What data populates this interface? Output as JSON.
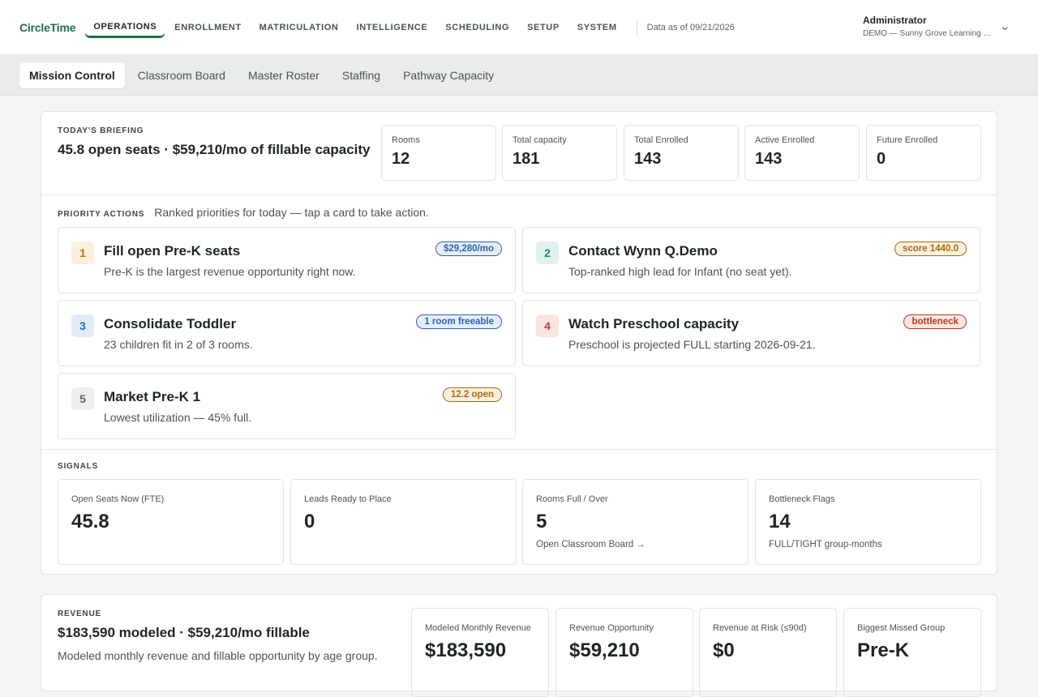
{
  "app": {
    "brand": "CircleTime"
  },
  "nav": {
    "items": [
      "OPERATIONS",
      "ENROLLMENT",
      "MATRICULATION",
      "INTELLIGENCE",
      "SCHEDULING",
      "SETUP",
      "SYSTEM"
    ],
    "active": "OPERATIONS",
    "as_of": "Data as of 09/21/2026"
  },
  "user": {
    "name": "Administrator",
    "org": "DEMO — Sunny Grove Learning Ce...",
    "chevron_icon": "chevron-down-icon"
  },
  "subtabs": [
    "Mission Control",
    "Classroom Board",
    "Master Roster",
    "Staffing",
    "Pathway Capacity"
  ],
  "briefing": {
    "eyebrow": "TODAY'S BRIEFING",
    "headline": "45.8 open seats · $59,210/mo of fillable capacity",
    "stats": [
      {
        "label": "Rooms",
        "value": "12"
      },
      {
        "label": "Total capacity",
        "value": "181"
      },
      {
        "label": "Total Enrolled",
        "value": "143"
      },
      {
        "label": "Active Enrolled",
        "value": "143"
      },
      {
        "label": "Future Enrolled",
        "value": "0"
      }
    ]
  },
  "priority": {
    "eyebrow": "PRIORITY ACTIONS",
    "desc": "Ranked priorities for today — tap a card to take action.",
    "cards": [
      {
        "num": "1",
        "title": "Fill open Pre-K seats",
        "sub": "Pre-K is the largest revenue opportunity right now.",
        "pill": "$29,280/mo"
      },
      {
        "num": "2",
        "title": "Contact Wynn Q.Demo",
        "sub": "Top-ranked high lead for Infant (no seat yet).",
        "pill": "score 1440.0"
      },
      {
        "num": "3",
        "title": "Consolidate Toddler",
        "sub": "23 children fit in 2 of 3 rooms.",
        "pill": "1 room freeable"
      },
      {
        "num": "4",
        "title": "Watch Preschool capacity",
        "sub": "Preschool is projected FULL starting 2026-09-21.",
        "pill": "bottleneck"
      },
      {
        "num": "5",
        "title": "Market Pre-K 1",
        "sub": "Lowest utilization — 45% full.",
        "pill": "12.2 open"
      }
    ]
  },
  "signals": {
    "eyebrow": "SIGNALS",
    "items": [
      {
        "label": "Open Seats Now (FTE)",
        "value": "45.8",
        "foot": ""
      },
      {
        "label": "Leads Ready to Place",
        "value": "0",
        "foot": ""
      },
      {
        "label": "Rooms Full / Over",
        "value": "5",
        "foot": "Open Classroom Board →"
      },
      {
        "label": "Bottleneck Flags",
        "value": "14",
        "foot": "FULL/TIGHT group-months"
      }
    ]
  },
  "revenue": {
    "eyebrow": "REVENUE",
    "headline": "$183,590 modeled · $59,210/mo fillable",
    "desc": "Modeled monthly revenue and fillable opportunity by age group.",
    "stats": [
      {
        "label": "Modeled Monthly Revenue",
        "value": "$183,590"
      },
      {
        "label": "Revenue Opportunity",
        "value": "$59,210"
      },
      {
        "label": "Revenue at Risk (≤90d)",
        "value": "$0"
      },
      {
        "label": "Biggest Missed Group",
        "value": "Pre-K"
      }
    ]
  },
  "colors": {
    "brand": "#1f6f47",
    "accent_blue": "#2c62b0",
    "accent_amber": "#a86a12",
    "accent_red": "#b3392a"
  }
}
